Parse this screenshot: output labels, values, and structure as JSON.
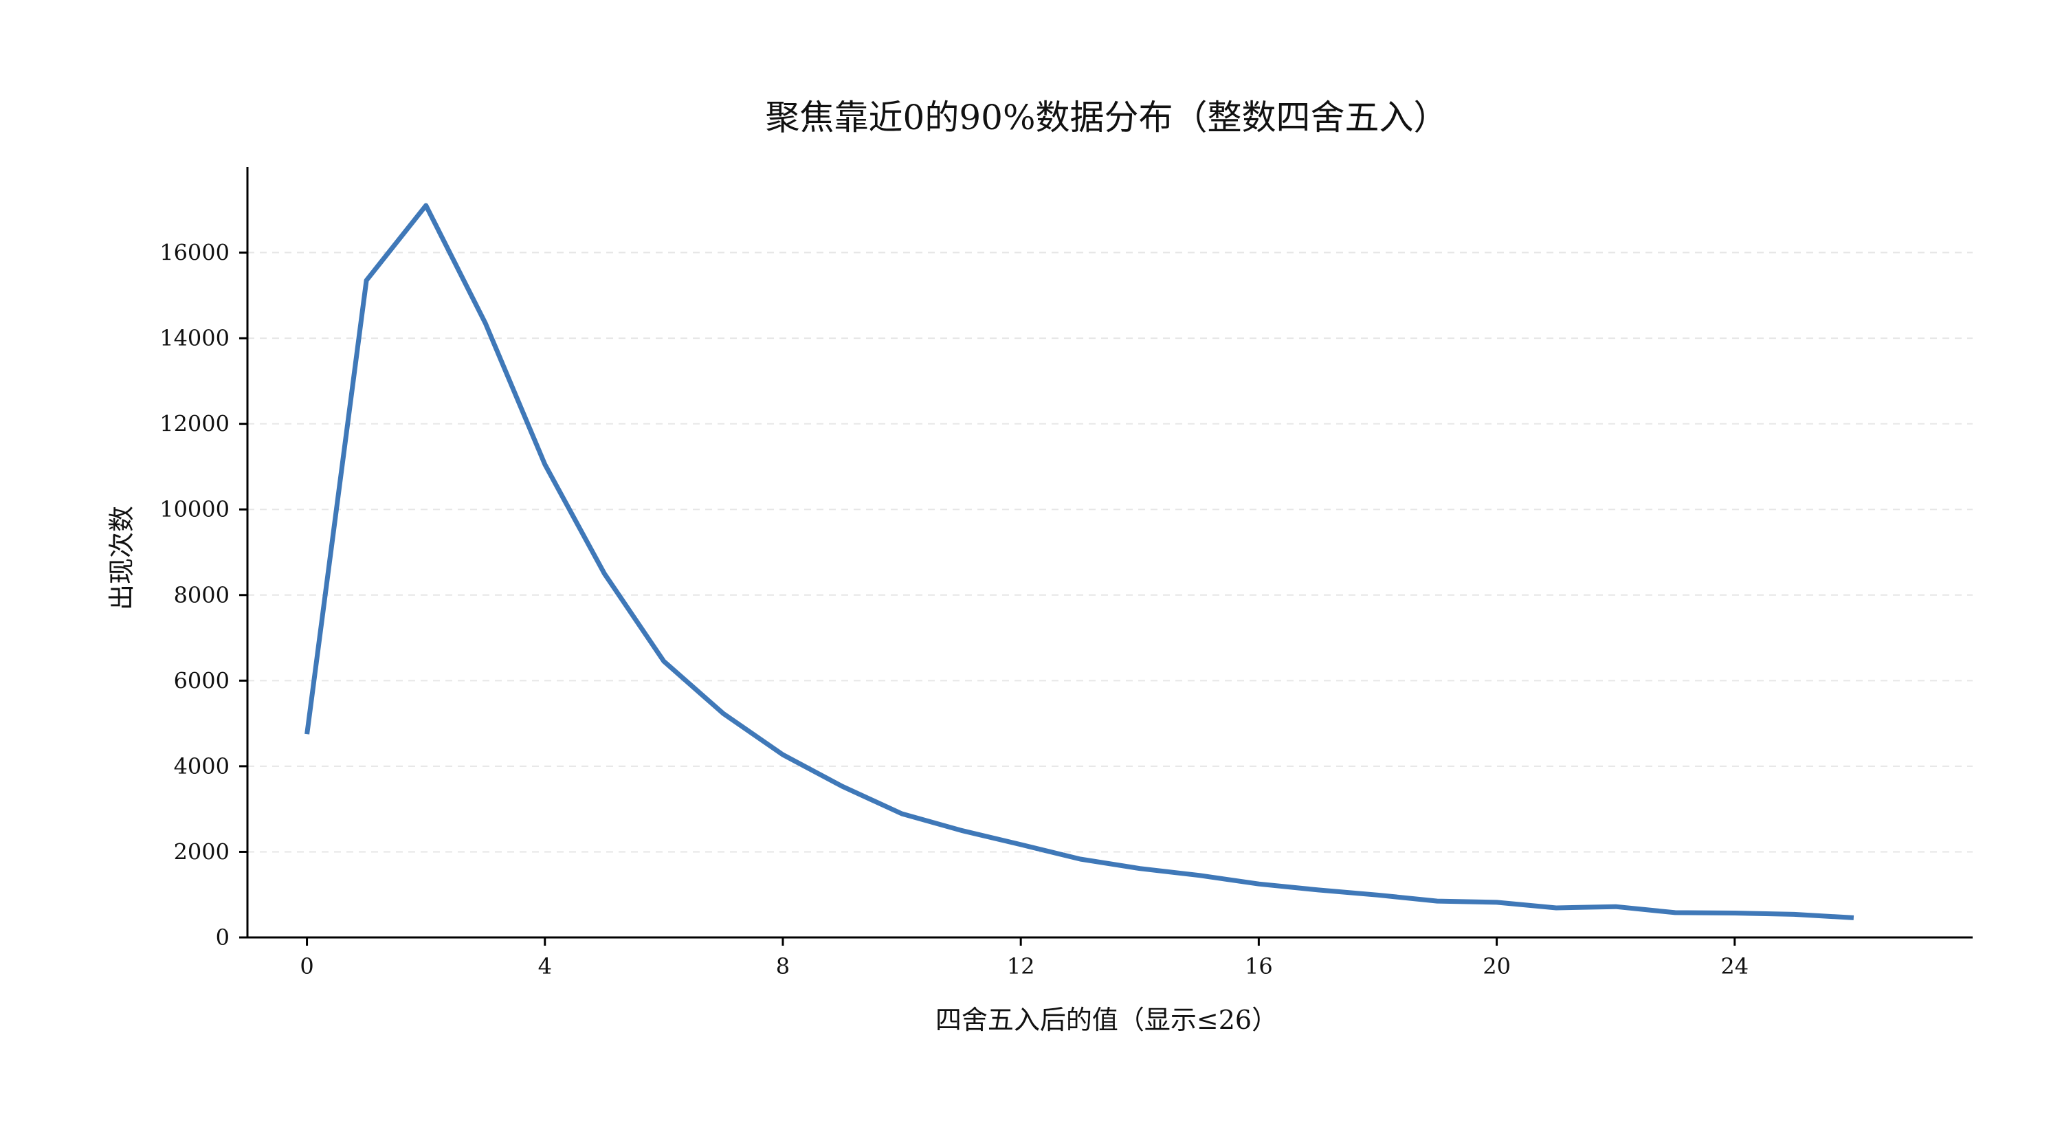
{
  "chart_data": {
    "type": "line",
    "title": "聚焦靠近0的90%数据分布（整数四舍五入）",
    "xlabel": "四舍五入后的值（显示≤26）",
    "ylabel": "出现次数",
    "xlim": [
      -1,
      28
    ],
    "ylim": [
      0,
      18000
    ],
    "xticks": [
      0,
      4,
      8,
      12,
      16,
      20,
      24
    ],
    "yticks": [
      0,
      2000,
      4000,
      6000,
      8000,
      10000,
      12000,
      14000,
      16000
    ],
    "grid": "y-dashed",
    "color": "#3f78b8",
    "x": [
      0,
      1,
      2,
      3,
      4,
      5,
      6,
      7,
      8,
      9,
      10,
      11,
      12,
      13,
      14,
      15,
      16,
      17,
      18,
      19,
      20,
      21,
      22,
      23,
      24,
      25,
      26
    ],
    "y": [
      4750,
      15350,
      17100,
      14350,
      11050,
      8500,
      6450,
      5230,
      4270,
      3530,
      2890,
      2500,
      2170,
      1830,
      1610,
      1450,
      1250,
      1110,
      990,
      850,
      820,
      690,
      720,
      580,
      570,
      540,
      460
    ]
  }
}
